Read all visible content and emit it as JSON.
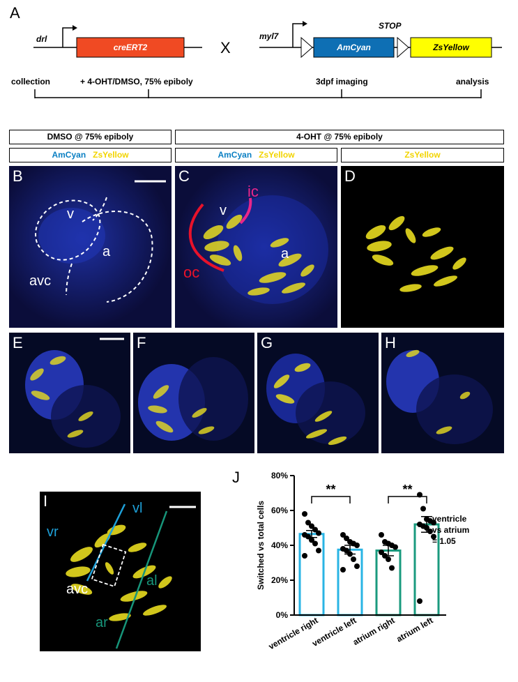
{
  "panel_letters": {
    "A": "A",
    "B": "B",
    "C": "C",
    "D": "D",
    "E": "E",
    "F": "F",
    "G": "G",
    "H": "H",
    "I": "I",
    "J": "J"
  },
  "construct": {
    "promoter1": "drl",
    "gene1": "creERT2",
    "cross": "X",
    "promoter2": "myl7",
    "stop": "STOP",
    "gene2": "AmCyan",
    "gene3": "ZsYellow",
    "colors": {
      "creERT2": "#f04a23",
      "AmCyan": "#0e6fb4",
      "ZsYellow": "#ffff00"
    }
  },
  "timeline": {
    "collection": "collection",
    "treatment": "+ 4-OHT/DMSO, 75% epiboly",
    "imaging": "3dpf imaging",
    "analysis": "analysis"
  },
  "conditions": {
    "dmso": "DMSO @ 75% epiboly",
    "ohtx": "4-OHT @ 75% epiboly"
  },
  "channels": {
    "amcyan": "AmCyan",
    "zsyellow": "ZsYellow"
  },
  "panel_b": {
    "v": "v",
    "a": "a",
    "avc": "avc"
  },
  "panel_c": {
    "v": "v",
    "a": "a",
    "ic": "ic",
    "oc": "oc"
  },
  "panel_i": {
    "vr": "vr",
    "vl": "vl",
    "avc": "avc",
    "al": "al",
    "ar": "ar"
  },
  "chart_data": {
    "type": "bar",
    "categories": [
      "ventricle right",
      "ventricle left",
      "atrium right",
      "atrium left"
    ],
    "values": [
      46.5,
      37.5,
      37.0,
      52.0
    ],
    "sem": [
      2.0,
      2.5,
      3.0,
      4.5
    ],
    "points": [
      [
        58,
        53,
        51,
        49,
        47,
        46,
        45,
        43,
        41,
        37,
        34
      ],
      [
        46,
        44,
        42,
        41,
        40,
        38,
        37,
        35,
        32,
        28,
        26
      ],
      [
        46,
        42,
        41,
        40,
        39,
        36,
        34,
        32,
        27
      ],
      [
        69,
        61,
        55,
        54,
        53,
        52,
        51,
        50,
        48,
        45,
        8
      ]
    ],
    "bar_colors": [
      "#29b4e4",
      "#29b4e4",
      "#1a9a7e",
      "#1a9a7e"
    ],
    "ylabel": "Switched vs total cells",
    "ylim": [
      0,
      80
    ],
    "yticks": [
      "0%",
      "20%",
      "40%",
      "60%",
      "80%"
    ],
    "significance": [
      {
        "pair": [
          0,
          1
        ],
        "label": "**"
      },
      {
        "pair": [
          2,
          3
        ],
        "label": "**"
      }
    ],
    "annotation_lines": [
      "ventricle",
      "vs atrium",
      "= 1.05"
    ]
  }
}
